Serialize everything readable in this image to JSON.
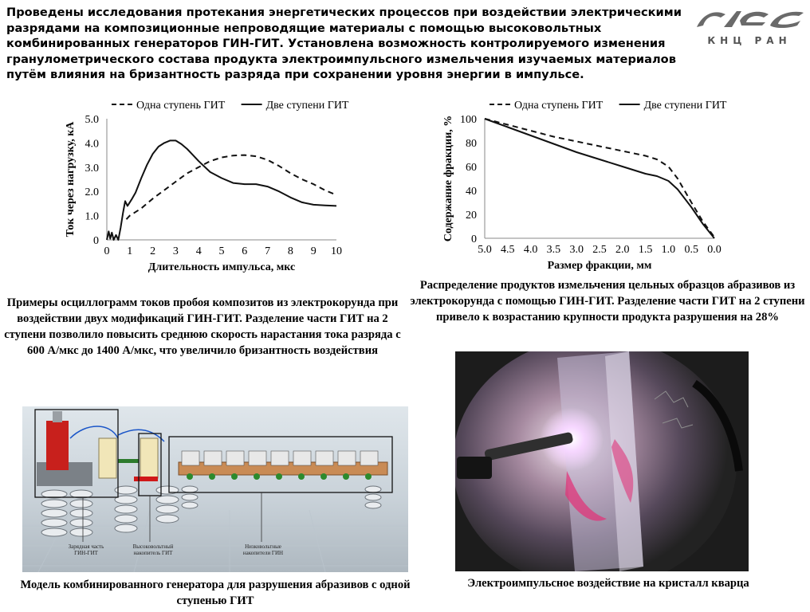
{
  "headline": "Проведены исследования протекания энергетических процессов при воздействии электрическими разрядами на композиционные непроводящие материалы с помощью высоковольтных комбинированных генераторов ГИН-ГИТ. Установлена возможность контролируемого изменения гранулометрического состава продукта электроимпульсного измельчения изучаемых материалов путём влияния на бризантность разряда при сохранении уровня энергии в импульсе.",
  "logo": {
    "text": "КНЦ РАН"
  },
  "chart_data": [
    {
      "type": "line",
      "ylabel": "Ток через нагрузку, кА",
      "xlabel": "Длительность импульса, мкс",
      "xlim": [
        0,
        10
      ],
      "ylim": [
        0,
        5
      ],
      "x_ticks": [
        "0",
        "1",
        "2",
        "3",
        "4",
        "5",
        "6",
        "7",
        "8",
        "9",
        "10"
      ],
      "y_ticks": [
        "5.0",
        "4.0",
        "3.0",
        "2.0",
        "1.0",
        "0"
      ],
      "grid": false,
      "legend_position": "top",
      "series": [
        {
          "name": "Одна ступень ГИТ",
          "style": "dashed",
          "x": [
            0.85,
            1.0,
            1.5,
            2.0,
            2.5,
            3.0,
            3.5,
            4.0,
            4.5,
            5.0,
            5.5,
            6.0,
            6.5,
            7.0,
            7.5,
            8.0,
            8.5,
            9.0,
            9.5,
            10.0
          ],
          "y": [
            0.85,
            1.0,
            1.3,
            1.7,
            2.05,
            2.4,
            2.75,
            3.0,
            3.25,
            3.4,
            3.48,
            3.5,
            3.45,
            3.3,
            3.05,
            2.75,
            2.5,
            2.3,
            2.05,
            1.85
          ]
        },
        {
          "name": "Две ступени ГИТ",
          "style": "solid",
          "x": [
            0.0,
            0.08,
            0.15,
            0.22,
            0.3,
            0.4,
            0.5,
            0.6,
            0.7,
            0.8,
            0.9,
            1.0,
            1.1,
            1.25,
            1.5,
            1.75,
            2.0,
            2.25,
            2.5,
            2.75,
            3.0,
            3.25,
            3.5,
            3.75,
            4.0,
            4.5,
            5.0,
            5.5,
            6.0,
            6.5,
            7.0,
            7.5,
            8.0,
            8.5,
            9.0,
            9.5,
            10.0
          ],
          "y": [
            0.0,
            0.35,
            0.05,
            0.3,
            0.0,
            0.2,
            0.0,
            0.5,
            1.1,
            1.6,
            1.4,
            1.55,
            1.7,
            1.95,
            2.55,
            3.1,
            3.55,
            3.85,
            4.0,
            4.1,
            4.1,
            3.95,
            3.75,
            3.5,
            3.25,
            2.8,
            2.55,
            2.35,
            2.3,
            2.3,
            2.2,
            2.0,
            1.75,
            1.55,
            1.45,
            1.42,
            1.4
          ]
        }
      ]
    },
    {
      "type": "line",
      "ylabel": "Содержание фракции, %",
      "xlabel": "Размер фракции, мм",
      "xlim": [
        5.0,
        0.0
      ],
      "ylim": [
        0,
        100
      ],
      "x_ticks": [
        "5.0",
        "4.5",
        "4.0",
        "3.5",
        "3.0",
        "2.5",
        "2.0",
        "1.5",
        "1.0",
        "0.5",
        "0.0"
      ],
      "y_ticks": [
        "100",
        "80",
        "60",
        "40",
        "20",
        "0"
      ],
      "grid": false,
      "legend_position": "top",
      "series": [
        {
          "name": "Одна ступень ГИТ",
          "style": "dashed",
          "x": [
            5.0,
            4.5,
            4.0,
            3.5,
            3.0,
            2.5,
            2.0,
            1.5,
            1.25,
            1.0,
            0.8,
            0.5,
            0.25,
            0.0
          ],
          "y": [
            100,
            95,
            90,
            85,
            81,
            77,
            73,
            69,
            66,
            60,
            50,
            30,
            14,
            1
          ]
        },
        {
          "name": "Две ступени ГИТ",
          "style": "solid",
          "x": [
            5.0,
            4.5,
            4.0,
            3.5,
            3.0,
            2.5,
            2.0,
            1.5,
            1.25,
            1.0,
            0.8,
            0.5,
            0.25,
            0.0
          ],
          "y": [
            100,
            93,
            86,
            79,
            72,
            66,
            60,
            54,
            52,
            48,
            41,
            26,
            12,
            0
          ]
        }
      ]
    }
  ],
  "captions": {
    "chart1": "Примеры осциллограмм токов пробоя композитов из электрокорунда при воздействии двух модификаций ГИН-ГИТ. Разделение части ГИТ на 2 ступени позволило повысить среднюю скорость нарастания тока разряда с 600 А/мкс до 1400 А/мкс, что увеличило бризантность воздействия",
    "chart2": "Распределение продуктов измельчения цельных образцов абразивов из электрокорунда с помощью ГИН-ГИТ. Разделение части ГИТ на 2 ступени привело к возрастанию крупности продукта разрушения на 28%",
    "model": "Модель комбинированного генератора для разрушения абразивов с одной ступенью ГИТ",
    "crystal": "Электроимпульсное воздействие на кристалл кварца"
  },
  "model_labels": {
    "charging": "Зарядная часть ГИН-ГИТ",
    "hv_storage": "Высоковольтный накопитель ГИТ",
    "lv_storage": "Низковольтные накопители ГИН"
  },
  "colors": {
    "text": "#000000",
    "line": "#111111",
    "model_bg": "#cfd8df",
    "logo": "#5a5a5a"
  }
}
